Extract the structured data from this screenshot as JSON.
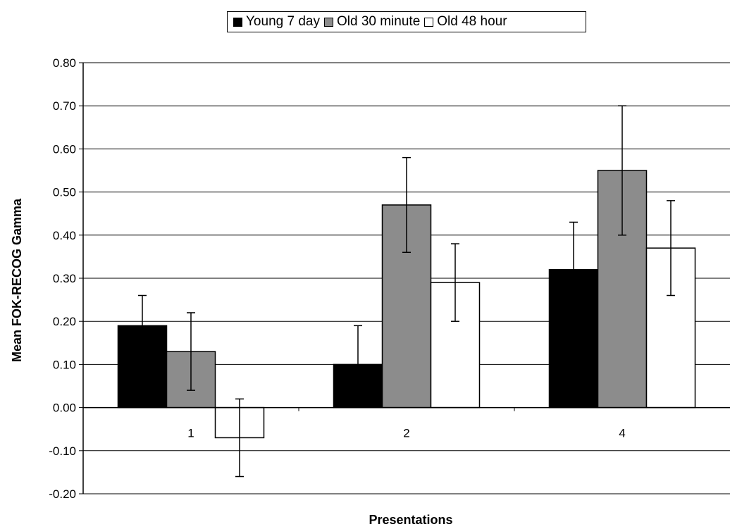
{
  "chart_data": {
    "type": "bar",
    "categories": [
      "1",
      "2",
      "4"
    ],
    "series": [
      {
        "name": "Young 7 day",
        "color": "#000000",
        "values": [
          0.19,
          0.1,
          0.32
        ],
        "error": [
          0.07,
          0.09,
          0.11
        ]
      },
      {
        "name": "Old 30 minute",
        "color": "#8c8c8c",
        "values": [
          0.13,
          0.47,
          0.55
        ],
        "error": [
          0.09,
          0.11,
          0.15
        ]
      },
      {
        "name": "Old 48 hour",
        "color": "#ffffff",
        "values": [
          -0.07,
          0.29,
          0.37
        ],
        "error": [
          0.09,
          0.09,
          0.11
        ]
      }
    ],
    "title": "",
    "xlabel": "Presentations",
    "ylabel": "Mean FOK-RECOG Gamma",
    "ylim": [
      -0.2,
      0.8
    ],
    "yticks": [
      "-0.20",
      "-0.10",
      "0.00",
      "0.10",
      "0.20",
      "0.30",
      "0.40",
      "0.50",
      "0.60",
      "0.70",
      "0.80"
    ],
    "grid": true,
    "legend_position": "top"
  }
}
